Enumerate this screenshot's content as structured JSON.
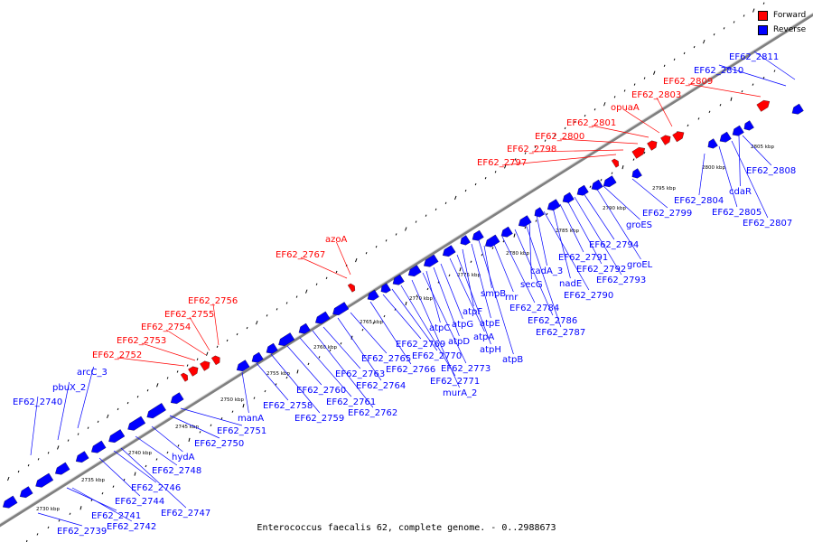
{
  "caption": "Enterococcus faecalis 62, complete genome. - 0..2988673",
  "legend": [
    {
      "label": "Forward",
      "color": "#ff0000"
    },
    {
      "label": "Reverse",
      "color": "#0000ff"
    }
  ],
  "colors": {
    "forward": "#ff0000",
    "reverse": "#0000ff",
    "backbone": "#808080",
    "tick": "#000000"
  },
  "scale_labels": [
    "2730 kbp",
    "2735 kbp",
    "2740 kbp",
    "2745 kbp",
    "2750 kbp",
    "2755 kbp",
    "2760 kbp",
    "2765 kbp",
    "2770 kbp",
    "2775 kbp",
    "2780 kbp",
    "2785 kbp",
    "2790 kbp",
    "2795 kbp",
    "2800 kbp",
    "2805 kbp"
  ],
  "forward_labels": [
    "EF62_2752",
    "EF62_2753",
    "EF62_2754",
    "EF62_2755",
    "EF62_2756",
    "EF62_2767",
    "azoA",
    "EF62_2797",
    "EF62_2798",
    "EF62_2800",
    "EF62_2801",
    "opuaA",
    "EF62_2803",
    "EF62_2809"
  ],
  "reverse_labels": [
    "EF62_2739",
    "EF62_2740",
    "pbuX_2",
    "arcC_3",
    "EF62_2741",
    "EF62_2742",
    "EF62_2744",
    "EF62_2746",
    "EF62_2747",
    "EF62_2748",
    "hydA",
    "EF62_2750",
    "EF62_2751",
    "manA",
    "EF62_2758",
    "EF62_2759",
    "EF62_2760",
    "EF62_2761",
    "EF62_2762",
    "EF62_2763",
    "EF62_2764",
    "EF62_2765",
    "EF62_2766",
    "EF62_2769",
    "EF62_2770",
    "EF62_2771",
    "murA_2",
    "EF62_2773",
    "atpC",
    "atpD",
    "atpG",
    "atpA",
    "atpH",
    "atpF",
    "atpE",
    "atpB",
    "smpB",
    "rnr",
    "EF62_2784",
    "EF62_2786",
    "EF62_2787",
    "secG",
    "cadA_3",
    "EF62_2790",
    "nadE",
    "EF62_2791",
    "EF62_2792",
    "EF62_2793",
    "EF62_2794",
    "groEL",
    "groES",
    "EF62_2799",
    "EF62_2804",
    "EF62_2805",
    "EF62_2807",
    "cdaR",
    "EF62_2808",
    "EF62_2810",
    "EF62_2811"
  ]
}
